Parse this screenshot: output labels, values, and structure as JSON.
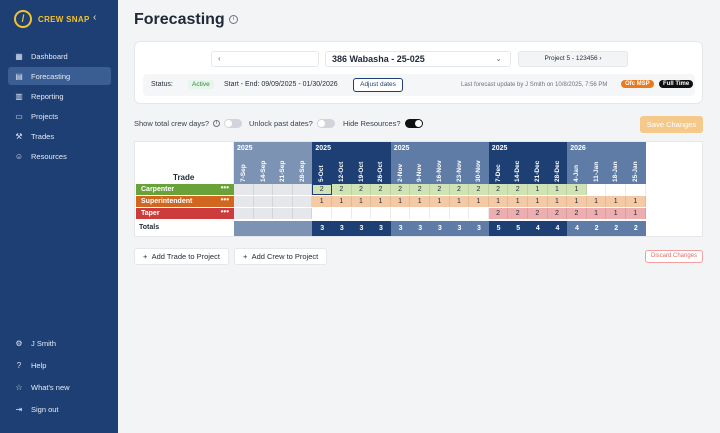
{
  "sidebar": {
    "logo_text": "CREW SNAP",
    "collapse_glyph": "‹",
    "items": [
      {
        "key": "dashboard",
        "label": "Dashboard",
        "icon": "grid-icon",
        "active": false
      },
      {
        "key": "forecasting",
        "label": "Forecasting",
        "icon": "calendar-icon",
        "active": true
      },
      {
        "key": "reporting",
        "label": "Reporting",
        "icon": "chart-icon",
        "active": false
      },
      {
        "key": "projects",
        "label": "Projects",
        "icon": "clipboard-icon",
        "active": false
      },
      {
        "key": "trades",
        "label": "Trades",
        "icon": "wrench-icon",
        "active": false
      },
      {
        "key": "resources",
        "label": "Resources",
        "icon": "people-icon",
        "active": false
      }
    ],
    "bottom": [
      {
        "key": "user",
        "label": "J Smith",
        "icon": "gear-icon"
      },
      {
        "key": "help",
        "label": "Help",
        "icon": "help-icon"
      },
      {
        "key": "whats-new",
        "label": "What's new",
        "icon": "star-icon"
      },
      {
        "key": "sign-out",
        "label": "Sign out",
        "icon": "logout-icon"
      }
    ]
  },
  "header": {
    "title": "Forecasting"
  },
  "project_bar": {
    "prev_glyph": "‹",
    "project_name": "386 Wabasha - 25-025",
    "next_label": "Project 5 - 123456  ›",
    "status_label": "Status:",
    "status_value": "Active",
    "date_range": "Start - End:  09/09/2025 - 01/30/2026",
    "adjust_label": "Adjust dates",
    "last_update": "Last forecast update by J Smith on 10/8/2025, 7:56 PM",
    "badge_msp": "Ofc MSP",
    "badge_fulltime": "Full Time"
  },
  "toggles": {
    "crew_days": "Show total crew days?",
    "unlock": "Unlock past dates?",
    "hide_resources": "Hide Resources?"
  },
  "save_label": "Save Changes",
  "grid": {
    "trade_header": "Trade",
    "totals_label": "Totals",
    "years": [
      {
        "label": "2025",
        "start": 0,
        "span": 4,
        "color": "#7d93b3"
      },
      {
        "label": "2025",
        "start": 4,
        "span": 4,
        "color": "#1e3f73"
      },
      {
        "label": "2025",
        "start": 8,
        "span": 5,
        "color": "#5e7ca6"
      },
      {
        "label": "2025",
        "start": 13,
        "span": 4,
        "color": "#1e3f73"
      },
      {
        "label": "2026",
        "start": 17,
        "span": 4,
        "color": "#5e7ca6"
      }
    ],
    "weeks": [
      "7-Sep",
      "14-Sep",
      "21-Sep",
      "28-Sep",
      "5-Oct",
      "12-Oct",
      "19-Oct",
      "26-Oct",
      "2-Nov",
      "9-Nov",
      "16-Nov",
      "23-Nov",
      "30-Nov",
      "7-Dec",
      "14-Dec",
      "21-Dec",
      "28-Dec",
      "4-Jan",
      "11-Jan",
      "18-Jan",
      "25-Jan"
    ],
    "trades": [
      {
        "name": "Carpenter",
        "menu": "•••",
        "color": "#6aa23a",
        "cell_color": "#cfe3b5",
        "values": [
          "",
          "",
          "",
          "",
          "2",
          "2",
          "2",
          "2",
          "2",
          "2",
          "2",
          "2",
          "2",
          "2",
          "2",
          "1",
          "1",
          "1",
          "",
          "",
          ""
        ]
      },
      {
        "name": "Superintendent",
        "menu": "•••",
        "color": "#d1661e",
        "cell_color": "#f3c9a6",
        "values": [
          "",
          "",
          "",
          "",
          "1",
          "1",
          "1",
          "1",
          "1",
          "1",
          "1",
          "1",
          "1",
          "1",
          "1",
          "1",
          "1",
          "1",
          "1",
          "1",
          "1"
        ]
      },
      {
        "name": "Taper",
        "menu": "•••",
        "color": "#cc3c3c",
        "cell_color": "#ecaeae",
        "values": [
          "",
          "",
          "",
          "",
          "",
          "",
          "",
          "",
          "",
          "",
          "",
          "",
          "",
          "2",
          "2",
          "2",
          "2",
          "2",
          "1",
          "1",
          "1"
        ]
      }
    ],
    "totals": [
      "",
      "",
      "",
      "",
      "3",
      "3",
      "3",
      "3",
      "3",
      "3",
      "3",
      "3",
      "3",
      "5",
      "5",
      "4",
      "4",
      "4",
      "2",
      "2",
      "2"
    ]
  },
  "actions": {
    "add_trade": "Add Trade to Project",
    "add_crew": "Add Crew to Project",
    "discard": "Discard Changes"
  }
}
